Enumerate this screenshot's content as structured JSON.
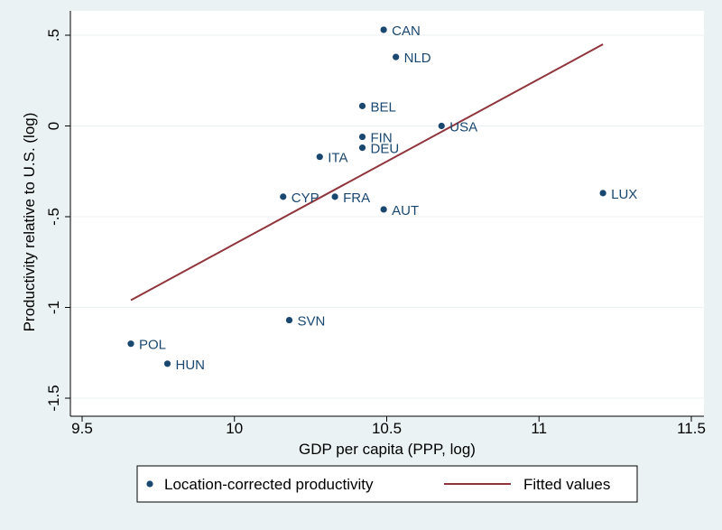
{
  "chart_data": {
    "type": "scatter",
    "xlabel": "GDP per capita (PPP, log)",
    "ylabel": "Productivity relative to U.S. (log)",
    "xlim": [
      9.5,
      11.5
    ],
    "ylim": [
      -1.5,
      0.5
    ],
    "xticks": [
      9.5,
      10,
      10.5,
      11,
      11.5
    ],
    "xtick_labels": [
      "9.5",
      "10",
      "10.5",
      "11",
      "11.5"
    ],
    "yticks": [
      -1.5,
      -1,
      -0.5,
      0,
      0.5
    ],
    "ytick_labels": [
      "-1.5",
      "-1",
      "-.5",
      "0",
      ".5"
    ],
    "grid": true,
    "legend_position": "bottom",
    "series": [
      {
        "name": "Location-corrected productivity",
        "kind": "scatter",
        "color": "#1a476f",
        "points": [
          {
            "label": "CAN",
            "x": 10.49,
            "y": 0.53
          },
          {
            "label": "NLD",
            "x": 10.53,
            "y": 0.38
          },
          {
            "label": "BEL",
            "x": 10.42,
            "y": 0.11
          },
          {
            "label": "USA",
            "x": 10.68,
            "y": 0.0
          },
          {
            "label": "FIN",
            "x": 10.42,
            "y": -0.06
          },
          {
            "label": "DEU",
            "x": 10.42,
            "y": -0.12
          },
          {
            "label": "ITA",
            "x": 10.28,
            "y": -0.17
          },
          {
            "label": "CYP",
            "x": 10.16,
            "y": -0.39
          },
          {
            "label": "FRA",
            "x": 10.33,
            "y": -0.39
          },
          {
            "label": "AUT",
            "x": 10.49,
            "y": -0.46
          },
          {
            "label": "LUX",
            "x": 11.21,
            "y": -0.37
          },
          {
            "label": "SVN",
            "x": 10.18,
            "y": -1.07
          },
          {
            "label": "POL",
            "x": 9.66,
            "y": -1.2
          },
          {
            "label": "HUN",
            "x": 9.78,
            "y": -1.31
          }
        ]
      },
      {
        "name": "Fitted values",
        "kind": "line",
        "color": "#90353b",
        "points": [
          {
            "x": 9.66,
            "y": -0.96
          },
          {
            "x": 11.21,
            "y": 0.45
          }
        ]
      }
    ]
  }
}
